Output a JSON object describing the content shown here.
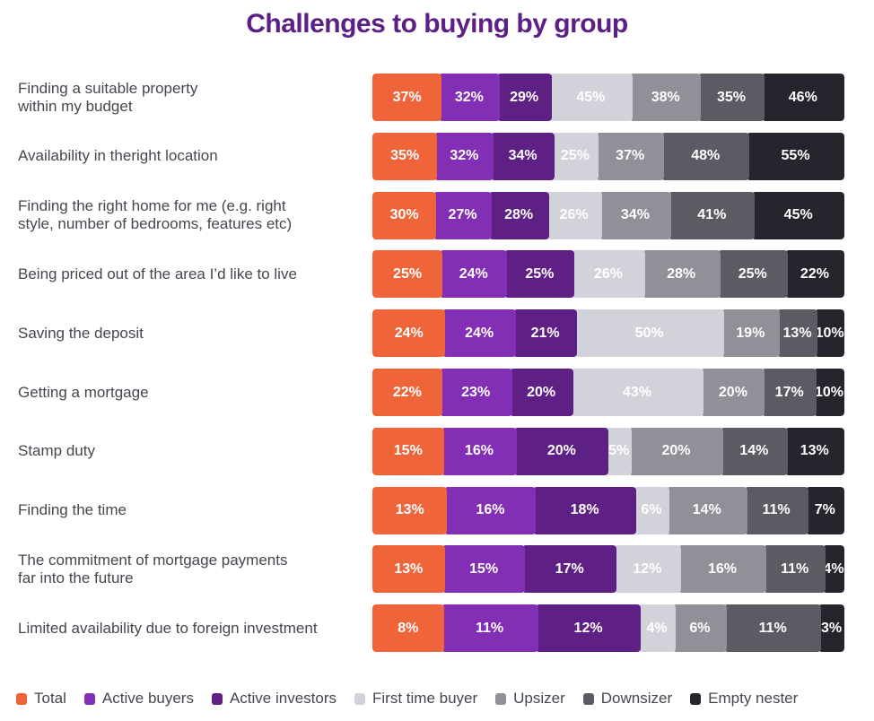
{
  "chart_data": {
    "type": "bar",
    "orientation": "horizontal",
    "stacked": "normalized",
    "title": "Challenges to buying by group",
    "xlabel": "",
    "ylabel": "",
    "grid": false,
    "legend_position": "bottom",
    "value_format": "percent",
    "categories": [
      "Finding a suitable property\nwithin my budget",
      "Availability in theright location",
      "Finding the right home for me (e.g. right\nstyle, number of bedrooms, features etc)",
      "Being priced out of the area I’d like to live",
      "Saving the deposit",
      "Getting a mortgage",
      "Stamp duty",
      "Finding the time",
      "The commitment of mortgage payments\nfar into the future",
      "Limited availability due to foreign investment"
    ],
    "series": [
      {
        "name": "Total",
        "color": "#ef6439",
        "values": [
          37,
          35,
          30,
          25,
          24,
          22,
          15,
          13,
          13,
          8
        ]
      },
      {
        "name": "Active buyers",
        "color": "#822fb6",
        "values": [
          32,
          32,
          27,
          24,
          24,
          23,
          16,
          16,
          15,
          11
        ]
      },
      {
        "name": "Active investors",
        "color": "#5f2086",
        "values": [
          29,
          34,
          28,
          25,
          21,
          20,
          20,
          18,
          17,
          12
        ]
      },
      {
        "name": "First time buyer",
        "color": "#d2d2da",
        "values": [
          45,
          25,
          26,
          26,
          50,
          43,
          5,
          6,
          12,
          4
        ]
      },
      {
        "name": "Upsizer",
        "color": "#909098",
        "values": [
          38,
          37,
          34,
          28,
          19,
          20,
          20,
          14,
          16,
          6
        ]
      },
      {
        "name": "Downsizer",
        "color": "#5b5b63",
        "values": [
          35,
          48,
          41,
          25,
          13,
          17,
          14,
          11,
          11,
          11
        ]
      },
      {
        "name": "Empty nester",
        "color": "#25252d",
        "values": [
          46,
          55,
          45,
          22,
          10,
          10,
          13,
          7,
          4,
          3
        ]
      }
    ]
  }
}
